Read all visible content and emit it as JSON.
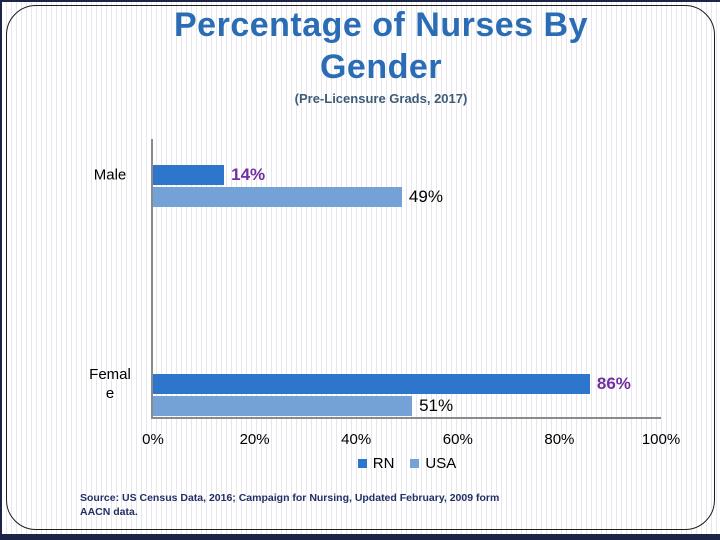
{
  "slide": {
    "title_line1": "Percentage of Nurses By",
    "title_line2": "Gender",
    "subtitle": "(Pre-Licensure Grads, 2017)",
    "source_line1": "Source: US Census Data, 2016;  Campaign for Nursing, Updated February, 2009 form",
    "source_line2": "AACN data."
  },
  "chart_data": {
    "type": "bar",
    "orientation": "horizontal",
    "title": "Percentage of Nurses By Gender",
    "subtitle": "(Pre-Licensure Grads, 2017)",
    "categories": [
      "Male",
      "Female"
    ],
    "series": [
      {
        "name": "RN",
        "values": [
          14,
          86
        ],
        "labels": [
          "14%",
          "86%"
        ],
        "color": "#2E76CC",
        "label_color": "#7030A0"
      },
      {
        "name": "USA",
        "values": [
          49,
          51
        ],
        "labels": [
          "49%",
          "51%"
        ],
        "color": "#74A1D6",
        "label_color": "#000000"
      }
    ],
    "xlim": [
      0,
      100
    ],
    "x_ticks": [
      "0%",
      "20%",
      "40%",
      "60%",
      "80%",
      "100%"
    ],
    "grid": false,
    "legend_position": "bottom"
  },
  "colors": {
    "page_edge": "#1E2447",
    "title": "#2A6DB4",
    "subtitle": "#3D5C77",
    "axis": "#8a8a8a",
    "rn_bar": "#2E76CC",
    "usa_bar": "#74A1D6",
    "rn_value": "#7030A0",
    "source_text": "#222F66"
  }
}
